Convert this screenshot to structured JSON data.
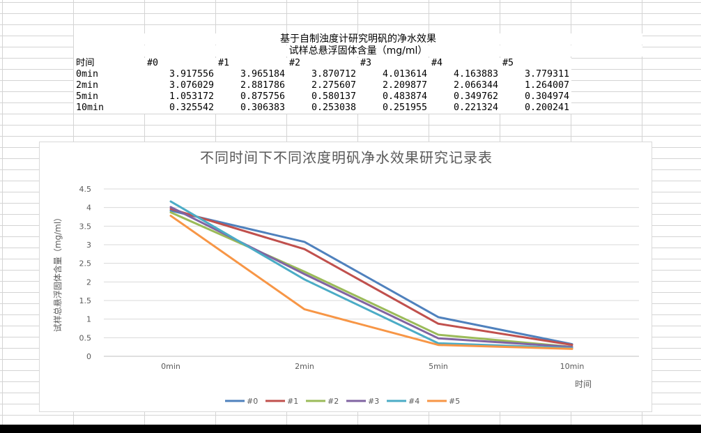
{
  "sheet": {
    "title": "基于自制浊度计研究明矾的净水效果",
    "subtitle": "试样总悬浮固体含量（mg/ml）",
    "headers": [
      "时间",
      "#0",
      "#1",
      "#2",
      "#3",
      "#4",
      "#5"
    ],
    "rows": [
      [
        "0min",
        "3.917556",
        "3.965184",
        "3.870712",
        "4.013614",
        "4.163883",
        "3.779311"
      ],
      [
        "2min",
        "3.076029",
        "2.881786",
        "2.275607",
        "2.209877",
        "2.066344",
        "1.264007"
      ],
      [
        "5min",
        "1.053172",
        "0.875756",
        "0.580137",
        "0.483874",
        "0.349762",
        "0.304974"
      ],
      [
        "10min",
        "0.325542",
        "0.306383",
        "0.253038",
        "0.251955",
        "0.221324",
        "0.200241"
      ]
    ]
  },
  "chart_data": {
    "type": "line",
    "title": "不同时间下不同浓度明矾净水效果研究记录表",
    "xlabel": "时间",
    "ylabel": "试样总悬浮固体含量（mg/ml）",
    "categories": [
      "0min",
      "2min",
      "5min",
      "10min"
    ],
    "ylim": [
      0,
      4.5
    ],
    "yticks": [
      "0",
      "0.5",
      "1",
      "1.5",
      "2",
      "2.5",
      "3",
      "3.5",
      "4",
      "4.5"
    ],
    "grid": true,
    "legend_position": "bottom",
    "series": [
      {
        "name": "#0",
        "color": "#4f81bd",
        "values": [
          3.917556,
          3.076029,
          1.053172,
          0.325542
        ]
      },
      {
        "name": "#1",
        "color": "#c0504d",
        "values": [
          3.965184,
          2.881786,
          0.875756,
          0.306383
        ]
      },
      {
        "name": "#2",
        "color": "#9bbb59",
        "values": [
          3.870712,
          2.275607,
          0.580137,
          0.253038
        ]
      },
      {
        "name": "#3",
        "color": "#8064a2",
        "values": [
          4.013614,
          2.209877,
          0.483874,
          0.251955
        ]
      },
      {
        "name": "#4",
        "color": "#4bacc6",
        "values": [
          4.163883,
          2.066344,
          0.349762,
          0.221324
        ]
      },
      {
        "name": "#5",
        "color": "#f79646",
        "values": [
          3.779311,
          1.264007,
          0.304974,
          0.200241
        ]
      }
    ]
  }
}
